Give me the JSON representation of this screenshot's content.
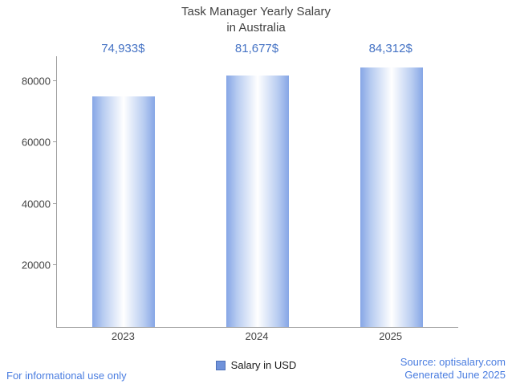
{
  "chart_data": {
    "type": "bar",
    "title_line1": "Task Manager Yearly Salary",
    "title_line2": "in Australia",
    "categories": [
      "2023",
      "2024",
      "2025"
    ],
    "values": [
      74933,
      81677,
      84312
    ],
    "value_labels": [
      "74,933$",
      "81,677$",
      "84,312$"
    ],
    "legend_label": "Salary in USD",
    "xlabel": "",
    "ylabel": "",
    "ylim": [
      0,
      88000
    ],
    "yticks": [
      20000,
      40000,
      60000,
      80000
    ],
    "ytick_labels": [
      "20000",
      "40000",
      "60000",
      "80000"
    ],
    "grid": false,
    "legend_position": "bottom-center",
    "bar_color_edge": "#86a6e6",
    "bar_color_mid": "#b9cdf1",
    "bar_color_center": "#ffffff",
    "value_label_color": "#4472c4",
    "axis_color": "#9e9e9e",
    "legend_swatch_color": "#6f92da"
  },
  "footer": {
    "disclaimer": "For informational use only",
    "source": "Source: optisalary.com",
    "generated": "Generated June 2025",
    "color": "#4a7de0"
  }
}
